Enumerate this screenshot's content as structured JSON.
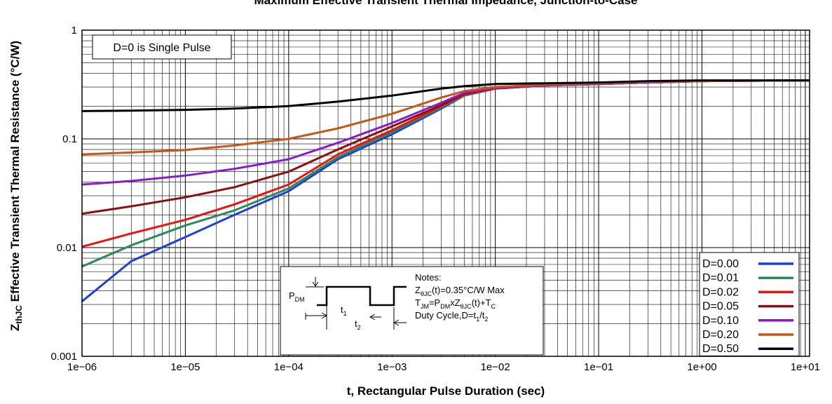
{
  "chart_data": {
    "type": "line",
    "title": "Maximum Effective Transient Thermal Impedance, Junction-to-Case",
    "xlabel": "t, Rectangular Pulse Duration (sec)",
    "ylabel_main": "Z",
    "ylabel_sub": "thJC",
    "ylabel_rest": " Effective Transient Thermal Resistance (°C/W)",
    "x_scale": "log",
    "y_scale": "log",
    "xlim": [
      1e-06,
      11
    ],
    "ylim": [
      0.001,
      1
    ],
    "x_ticks": [
      {
        "value": 1e-06,
        "label": "1e−06"
      },
      {
        "value": 1e-05,
        "label": "1e−05"
      },
      {
        "value": 0.0001,
        "label": "1e−04"
      },
      {
        "value": 0.001,
        "label": "1e−03"
      },
      {
        "value": 0.01,
        "label": "1e−02"
      },
      {
        "value": 0.1,
        "label": "1e−01"
      },
      {
        "value": 1,
        "label": "1e+00"
      },
      {
        "value": 10,
        "label": "1e+01"
      }
    ],
    "y_ticks": [
      {
        "value": 0.001,
        "label": "0.001"
      },
      {
        "value": 0.01,
        "label": "0.01"
      },
      {
        "value": 0.1,
        "label": "0.1"
      },
      {
        "value": 1,
        "label": "1"
      }
    ],
    "grid": true,
    "legend_position": "bottom-right",
    "annotation": "D=0 is Single Pulse",
    "notes": {
      "header": "Notes:",
      "pdm": "P",
      "pdm_sub": "DM",
      "t1": "t",
      "t1_sub": "1",
      "t2": "t",
      "t2_sub": "2",
      "line1_a": "Z",
      "line1_sub": "θJC",
      "line1_b": "(t)=0.35°C/W Max",
      "line2_a": "T",
      "line2_sub1": "JM",
      "line2_b": "=P",
      "line2_sub2": "DM",
      "line2_c": "xZ",
      "line2_sub3": "θJC",
      "line2_d": "(t)+T",
      "line2_sub4": "C",
      "line3_a": "Duty Cycle,D=t",
      "line3_sub1": "1",
      "line3_b": "/t",
      "line3_sub2": "2"
    },
    "series": [
      {
        "name": "D=0.00",
        "color": "#1f3fd6",
        "points": [
          [
            1e-06,
            0.0032
          ],
          [
            3e-06,
            0.0075
          ],
          [
            1e-05,
            0.0125
          ],
          [
            3e-05,
            0.02
          ],
          [
            0.0001,
            0.033
          ],
          [
            0.0003,
            0.065
          ],
          [
            0.001,
            0.11
          ],
          [
            0.003,
            0.19
          ],
          [
            0.005,
            0.25
          ],
          [
            0.01,
            0.29
          ],
          [
            0.03,
            0.31
          ],
          [
            0.1,
            0.32
          ],
          [
            0.3,
            0.33
          ],
          [
            1,
            0.34
          ],
          [
            11,
            0.345
          ]
        ]
      },
      {
        "name": "D=0.01",
        "color": "#2a8a5a",
        "points": [
          [
            1e-06,
            0.0067
          ],
          [
            3e-06,
            0.0105
          ],
          [
            1e-05,
            0.016
          ],
          [
            3e-05,
            0.022
          ],
          [
            0.0001,
            0.035
          ],
          [
            0.0003,
            0.068
          ],
          [
            0.001,
            0.115
          ],
          [
            0.003,
            0.195
          ],
          [
            0.005,
            0.25
          ],
          [
            0.01,
            0.29
          ],
          [
            0.03,
            0.31
          ],
          [
            0.1,
            0.32
          ],
          [
            0.3,
            0.33
          ],
          [
            1,
            0.34
          ],
          [
            11,
            0.345
          ]
        ]
      },
      {
        "name": "D=0.02",
        "color": "#ee1111",
        "points": [
          [
            1e-06,
            0.0102
          ],
          [
            3e-06,
            0.0135
          ],
          [
            1e-05,
            0.018
          ],
          [
            3e-05,
            0.025
          ],
          [
            0.0001,
            0.038
          ],
          [
            0.0003,
            0.072
          ],
          [
            0.001,
            0.12
          ],
          [
            0.003,
            0.2
          ],
          [
            0.005,
            0.255
          ],
          [
            0.01,
            0.29
          ],
          [
            0.03,
            0.31
          ],
          [
            0.1,
            0.32
          ],
          [
            0.3,
            0.33
          ],
          [
            1,
            0.34
          ],
          [
            11,
            0.345
          ]
        ]
      },
      {
        "name": "D=0.05",
        "color": "#8b0f0f",
        "points": [
          [
            1e-06,
            0.0205
          ],
          [
            3e-06,
            0.024
          ],
          [
            1e-05,
            0.029
          ],
          [
            3e-05,
            0.036
          ],
          [
            0.0001,
            0.05
          ],
          [
            0.0003,
            0.08
          ],
          [
            0.001,
            0.13
          ],
          [
            0.003,
            0.205
          ],
          [
            0.005,
            0.26
          ],
          [
            0.01,
            0.295
          ],
          [
            0.03,
            0.31
          ],
          [
            0.1,
            0.32
          ],
          [
            0.3,
            0.33
          ],
          [
            1,
            0.34
          ],
          [
            11,
            0.345
          ]
        ]
      },
      {
        "name": "D=0.10",
        "color": "#8a1ad0",
        "points": [
          [
            1e-06,
            0.038
          ],
          [
            3e-06,
            0.041
          ],
          [
            1e-05,
            0.046
          ],
          [
            3e-05,
            0.053
          ],
          [
            0.0001,
            0.065
          ],
          [
            0.0003,
            0.092
          ],
          [
            0.001,
            0.14
          ],
          [
            0.003,
            0.215
          ],
          [
            0.005,
            0.265
          ],
          [
            0.01,
            0.295
          ],
          [
            0.03,
            0.31
          ],
          [
            0.1,
            0.32
          ],
          [
            0.3,
            0.33
          ],
          [
            1,
            0.34
          ],
          [
            11,
            0.345
          ]
        ]
      },
      {
        "name": "D=0.20",
        "color": "#cc5511",
        "points": [
          [
            1e-06,
            0.072
          ],
          [
            3e-06,
            0.075
          ],
          [
            1e-05,
            0.079
          ],
          [
            3e-05,
            0.087
          ],
          [
            0.0001,
            0.1
          ],
          [
            0.0003,
            0.125
          ],
          [
            0.001,
            0.17
          ],
          [
            0.003,
            0.24
          ],
          [
            0.005,
            0.275
          ],
          [
            0.01,
            0.3
          ],
          [
            0.03,
            0.315
          ],
          [
            0.1,
            0.325
          ],
          [
            0.3,
            0.335
          ],
          [
            1,
            0.34
          ],
          [
            11,
            0.345
          ]
        ]
      },
      {
        "name": "D=0.50",
        "color": "#000000",
        "points": [
          [
            1e-06,
            0.18
          ],
          [
            3e-06,
            0.182
          ],
          [
            1e-05,
            0.185
          ],
          [
            3e-05,
            0.19
          ],
          [
            0.0001,
            0.2
          ],
          [
            0.0003,
            0.22
          ],
          [
            0.001,
            0.25
          ],
          [
            0.003,
            0.29
          ],
          [
            0.005,
            0.305
          ],
          [
            0.01,
            0.32
          ],
          [
            0.03,
            0.325
          ],
          [
            0.1,
            0.33
          ],
          [
            0.3,
            0.34
          ],
          [
            1,
            0.345
          ],
          [
            11,
            0.345
          ]
        ]
      }
    ]
  }
}
